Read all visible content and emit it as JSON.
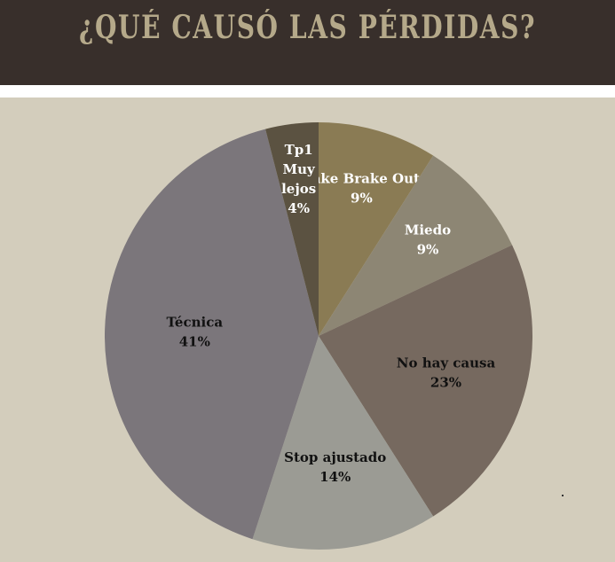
{
  "header": {
    "title": "¿QUÉ CAUSÓ LAS PÉRDIDAS?"
  },
  "colors": {
    "header_bg": "#382f2b",
    "header_text": "#b5a98a",
    "panel_bg": "#d3cdbc",
    "label_dark": "#111111",
    "label_light": "#ffffff"
  },
  "chart_data": {
    "type": "pie",
    "title": "¿QUÉ CAUSÓ LAS PÉRDIDAS?",
    "slices": [
      {
        "label": "Fake Brake Out",
        "value": 9,
        "display": "9%",
        "color": "#8a7b54",
        "label_color": "light"
      },
      {
        "label": "Miedo",
        "value": 9,
        "display": "9%",
        "color": "#8d8674",
        "label_color": "light"
      },
      {
        "label": "No hay causa",
        "value": 23,
        "display": "23%",
        "color": "#76695f",
        "label_color": "dark"
      },
      {
        "label": "Stop ajustado",
        "value": 14,
        "display": "14%",
        "color": "#9b9b94",
        "label_color": "dark"
      },
      {
        "label": "Técnica",
        "value": 41,
        "display": "41%",
        "color": "#7b767b",
        "label_color": "dark"
      },
      {
        "label": "Tp1 Muy lejos",
        "value": 4,
        "display": "4%",
        "color": "#5b5241",
        "label_color": "light"
      }
    ],
    "legend": "none"
  }
}
